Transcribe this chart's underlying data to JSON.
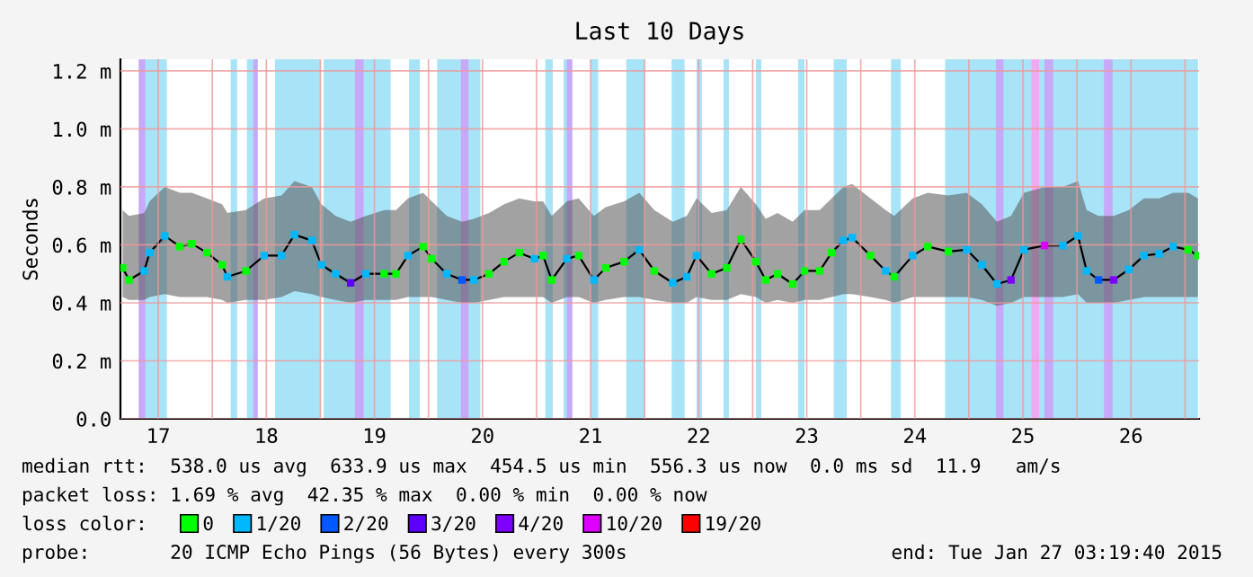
{
  "chart_data": {
    "type": "line",
    "title": "Last 10 Days",
    "ylabel": "Seconds",
    "legend_title": "loss color:",
    "xlim": [
      17.15,
      27.13
    ],
    "ylim": [
      0,
      1.24
    ],
    "xticks": [
      {
        "value": 17.5,
        "label": "17"
      },
      {
        "value": 18,
        "label": null
      },
      {
        "value": 18.5,
        "label": "18"
      },
      {
        "value": 19,
        "label": null
      },
      {
        "value": 19.5,
        "label": "19"
      },
      {
        "value": 20,
        "label": null
      },
      {
        "value": 20.5,
        "label": "20"
      },
      {
        "value": 21,
        "label": null
      },
      {
        "value": 21.5,
        "label": "21"
      },
      {
        "value": 22,
        "label": null
      },
      {
        "value": 22.5,
        "label": "22"
      },
      {
        "value": 23,
        "label": null
      },
      {
        "value": 23.5,
        "label": "23"
      },
      {
        "value": 24,
        "label": null
      },
      {
        "value": 24.5,
        "label": "24"
      },
      {
        "value": 25,
        "label": null
      },
      {
        "value": 25.5,
        "label": "25"
      },
      {
        "value": 26,
        "label": null
      },
      {
        "value": 26.5,
        "label": "26"
      },
      {
        "value": 27,
        "label": null
      }
    ],
    "yticks": [
      {
        "value": 0,
        "label": "0.0"
      },
      {
        "value": 0.2,
        "label": "0.2 m"
      },
      {
        "value": 0.4,
        "label": "0.4 m"
      },
      {
        "value": 0.6,
        "label": "0.6 m"
      },
      {
        "value": 0.8,
        "label": "0.8 m"
      },
      {
        "value": 1.0,
        "label": "1.0 m"
      },
      {
        "value": 1.2,
        "label": "1.2 m"
      }
    ],
    "grid": true,
    "legend": "bottom",
    "marker": "square",
    "series": [
      {
        "color": "#000000",
        "marker": "none",
        "x": [
          17.17,
          17.23,
          17.37,
          17.42,
          17.56,
          17.7,
          17.81,
          17.95,
          18.09,
          18.14,
          18.31,
          18.48,
          18.64,
          18.76,
          18.92,
          19.01,
          19.14,
          19.28,
          19.42,
          19.59,
          19.7,
          19.81,
          19.95,
          20.03,
          20.17,
          20.31,
          20.42,
          20.56,
          20.7,
          20.84,
          20.98,
          21.06,
          21.14,
          21.28,
          21.39,
          21.53,
          21.64,
          21.81,
          21.95,
          22.09,
          22.26,
          22.39,
          22.48,
          22.62,
          22.76,
          22.89,
          23.03,
          23.12,
          23.23,
          23.37,
          23.48,
          23.62,
          23.73,
          23.84,
          23.92,
          24.09,
          24.23,
          24.31,
          24.48,
          24.62,
          24.81,
          24.98,
          25.12,
          25.26,
          25.39,
          25.51,
          25.7,
          25.87,
          26.01,
          26.09,
          26.2,
          26.34,
          26.48,
          26.62,
          26.76,
          26.89,
          27.03,
          27.12
        ],
        "values": [
          0.521,
          0.479,
          0.51,
          0.573,
          0.631,
          0.594,
          0.604,
          0.573,
          0.531,
          0.49,
          0.51,
          0.563,
          0.563,
          0.635,
          0.615,
          0.531,
          0.5,
          0.469,
          0.5,
          0.5,
          0.5,
          0.563,
          0.594,
          0.552,
          0.5,
          0.479,
          0.479,
          0.5,
          0.542,
          0.573,
          0.552,
          0.563,
          0.479,
          0.552,
          0.563,
          0.479,
          0.521,
          0.542,
          0.583,
          0.51,
          0.469,
          0.49,
          0.563,
          0.5,
          0.521,
          0.619,
          0.542,
          0.479,
          0.5,
          0.465,
          0.51,
          0.51,
          0.573,
          0.615,
          0.625,
          0.563,
          0.51,
          0.49,
          0.563,
          0.594,
          0.577,
          0.583,
          0.531,
          0.465,
          0.479,
          0.583,
          0.598,
          0.598,
          0.631,
          0.51,
          0.479,
          0.479,
          0.515,
          0.563,
          0.569,
          0.594,
          0.583,
          0.563
        ],
        "lower": [
          0.42,
          0.41,
          0.41,
          0.42,
          0.43,
          0.42,
          0.42,
          0.42,
          0.41,
          0.4,
          0.41,
          0.41,
          0.42,
          0.44,
          0.43,
          0.42,
          0.41,
          0.4,
          0.41,
          0.41,
          0.41,
          0.42,
          0.42,
          0.42,
          0.41,
          0.4,
          0.4,
          0.41,
          0.42,
          0.42,
          0.42,
          0.42,
          0.4,
          0.42,
          0.42,
          0.4,
          0.41,
          0.42,
          0.42,
          0.41,
          0.4,
          0.4,
          0.42,
          0.41,
          0.41,
          0.43,
          0.42,
          0.4,
          0.41,
          0.4,
          0.41,
          0.41,
          0.42,
          0.43,
          0.43,
          0.42,
          0.41,
          0.4,
          0.42,
          0.42,
          0.42,
          0.42,
          0.41,
          0.39,
          0.4,
          0.42,
          0.42,
          0.42,
          0.43,
          0.4,
          0.4,
          0.4,
          0.41,
          0.42,
          0.42,
          0.42,
          0.42,
          0.42
        ],
        "upper": [
          0.72,
          0.7,
          0.71,
          0.75,
          0.8,
          0.78,
          0.78,
          0.76,
          0.74,
          0.71,
          0.72,
          0.76,
          0.77,
          0.82,
          0.8,
          0.74,
          0.7,
          0.68,
          0.7,
          0.72,
          0.72,
          0.76,
          0.78,
          0.75,
          0.7,
          0.68,
          0.69,
          0.71,
          0.74,
          0.76,
          0.75,
          0.75,
          0.7,
          0.75,
          0.76,
          0.7,
          0.73,
          0.75,
          0.78,
          0.72,
          0.68,
          0.7,
          0.76,
          0.71,
          0.72,
          0.8,
          0.74,
          0.69,
          0.71,
          0.68,
          0.72,
          0.72,
          0.76,
          0.8,
          0.81,
          0.76,
          0.72,
          0.7,
          0.76,
          0.78,
          0.77,
          0.78,
          0.74,
          0.68,
          0.7,
          0.78,
          0.8,
          0.8,
          0.82,
          0.72,
          0.7,
          0.7,
          0.72,
          0.76,
          0.76,
          0.78,
          0.78,
          0.76
        ]
      },
      {
        "type": "scatter",
        "name": "0",
        "color": "#00ff00",
        "x": [
          17.17,
          17.23,
          17.7,
          17.81,
          17.95,
          18.09,
          18.31,
          19.59,
          19.7,
          19.95,
          20.03,
          20.56,
          20.7,
          20.84,
          21.06,
          21.14,
          21.39,
          21.64,
          21.81,
          22.09,
          22.62,
          22.76,
          22.89,
          23.03,
          23.12,
          23.23,
          23.37,
          23.48,
          23.62,
          23.73,
          24.09,
          24.31,
          24.62,
          24.81,
          27.03,
          27.12
        ],
        "values": [
          0.521,
          0.479,
          0.594,
          0.604,
          0.573,
          0.531,
          0.51,
          0.5,
          0.5,
          0.594,
          0.552,
          0.5,
          0.542,
          0.573,
          0.563,
          0.479,
          0.563,
          0.521,
          0.542,
          0.51,
          0.5,
          0.521,
          0.619,
          0.542,
          0.479,
          0.5,
          0.465,
          0.51,
          0.51,
          0.573,
          0.563,
          0.49,
          0.594,
          0.577,
          0.583,
          0.563
        ]
      },
      {
        "type": "scatter",
        "name": "1/20",
        "color": "#00b8ff",
        "x": [
          17.37,
          17.42,
          17.56,
          18.14,
          18.48,
          18.64,
          18.76,
          18.92,
          19.01,
          19.14,
          19.42,
          19.81,
          20.17,
          20.42,
          20.98,
          21.28,
          21.53,
          21.95,
          22.26,
          22.39,
          22.48,
          23.84,
          23.92,
          24.23,
          24.48,
          24.98,
          25.12,
          25.26,
          25.51,
          25.87,
          26.01,
          26.09,
          26.48,
          26.62,
          26.76,
          26.89
        ],
        "values": [
          0.51,
          0.573,
          0.631,
          0.49,
          0.563,
          0.563,
          0.635,
          0.615,
          0.531,
          0.5,
          0.5,
          0.563,
          0.5,
          0.479,
          0.552,
          0.552,
          0.479,
          0.583,
          0.469,
          0.49,
          0.563,
          0.615,
          0.625,
          0.51,
          0.563,
          0.583,
          0.531,
          0.465,
          0.583,
          0.598,
          0.631,
          0.51,
          0.515,
          0.563,
          0.569,
          0.594
        ]
      },
      {
        "type": "scatter",
        "name": "2/20",
        "color": "#0059ff",
        "x": [
          20.31,
          26.2
        ],
        "values": [
          0.479,
          0.479
        ]
      },
      {
        "type": "scatter",
        "name": "3/20",
        "color": "#5e00ff",
        "x": [
          19.28
        ],
        "values": [
          0.469
        ]
      },
      {
        "type": "scatter",
        "name": "4/20",
        "color": "#7e00ff",
        "x": [
          25.39,
          26.34
        ],
        "values": [
          0.479,
          0.479
        ]
      },
      {
        "type": "scatter",
        "name": "10/20",
        "color": "#dd00ff",
        "x": [
          25.7
        ],
        "values": [
          0.598
        ]
      },
      {
        "type": "scatter",
        "name": "19/20",
        "color": "#ff0000"
      }
    ],
    "bands": [
      {
        "axis": "x",
        "from": 17.32,
        "to": 17.58,
        "color": "#a8e4f8"
      },
      {
        "axis": "x",
        "from": 18.17,
        "to": 18.23,
        "color": "#a8e4f8"
      },
      {
        "axis": "x",
        "from": 18.32,
        "to": 18.42,
        "color": "#a8e4f8"
      },
      {
        "axis": "x",
        "from": 18.58,
        "to": 19.0,
        "color": "#a8e4f8"
      },
      {
        "axis": "x",
        "from": 19.03,
        "to": 19.65,
        "color": "#a8e4f8"
      },
      {
        "axis": "x",
        "from": 19.82,
        "to": 19.92,
        "color": "#a8e4f8"
      },
      {
        "axis": "x",
        "from": 20.08,
        "to": 20.48,
        "color": "#a8e4f8"
      },
      {
        "axis": "x",
        "from": 21.08,
        "to": 21.15,
        "color": "#a8e4f8"
      },
      {
        "axis": "x",
        "from": 21.25,
        "to": 21.33,
        "color": "#a8e4f8"
      },
      {
        "axis": "x",
        "from": 21.5,
        "to": 21.57,
        "color": "#a8e4f8"
      },
      {
        "axis": "x",
        "from": 21.83,
        "to": 22.0,
        "color": "#a8e4f8"
      },
      {
        "axis": "x",
        "from": 22.25,
        "to": 22.37,
        "color": "#a8e4f8"
      },
      {
        "axis": "x",
        "from": 22.48,
        "to": 22.53,
        "color": "#a8e4f8"
      },
      {
        "axis": "x",
        "from": 22.73,
        "to": 22.78,
        "color": "#a8e4f8"
      },
      {
        "axis": "x",
        "from": 23.03,
        "to": 23.08,
        "color": "#a8e4f8"
      },
      {
        "axis": "x",
        "from": 23.42,
        "to": 23.48,
        "color": "#a8e4f8"
      },
      {
        "axis": "x",
        "from": 23.75,
        "to": 23.87,
        "color": "#a8e4f8"
      },
      {
        "axis": "x",
        "from": 24.28,
        "to": 24.37,
        "color": "#a8e4f8"
      },
      {
        "axis": "x",
        "from": 24.78,
        "to": 27.12,
        "color": "#a8e4f8"
      },
      {
        "axis": "x",
        "from": 17.32,
        "to": 17.38,
        "color": "#c8a8f8"
      },
      {
        "axis": "x",
        "from": 18.38,
        "to": 18.42,
        "color": "#c8a8f8"
      },
      {
        "axis": "x",
        "from": 19.32,
        "to": 19.4,
        "color": "#c8a8f8"
      },
      {
        "axis": "x",
        "from": 20.3,
        "to": 20.37,
        "color": "#c8a8f8"
      },
      {
        "axis": "x",
        "from": 21.28,
        "to": 21.33,
        "color": "#c8a8f8"
      },
      {
        "axis": "x",
        "from": 25.25,
        "to": 25.32,
        "color": "#c8a8f8"
      },
      {
        "axis": "x",
        "from": 25.58,
        "to": 25.65,
        "color": "#f0a8f0"
      },
      {
        "axis": "x",
        "from": 25.7,
        "to": 25.78,
        "color": "#c8a8f8"
      },
      {
        "axis": "x",
        "from": 26.25,
        "to": 26.33,
        "color": "#c8a8f8"
      }
    ],
    "annotations": [
      "median rtt:  538.0 us avg  633.9 us max  454.5 us min  556.3 us now  0.0 ms sd  11.9   am/s",
      "packet loss: 1.69 % avg  42.35 % max  0.00 % min  0.00 % now",
      "probe:       20 ICMP Echo Pings (56 Bytes) every 300s",
      "end: Tue Jan 27 03:19:40 2015"
    ]
  }
}
